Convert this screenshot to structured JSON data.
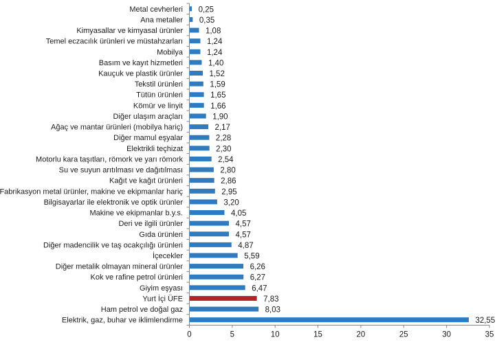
{
  "chart_data": {
    "type": "bar",
    "orientation": "horizontal",
    "title": "",
    "xlabel": "",
    "ylabel": "",
    "xlim": [
      0,
      35
    ],
    "x_ticks": [
      0,
      5,
      10,
      15,
      20,
      25,
      30,
      35
    ],
    "grid": false,
    "legend": "none",
    "default_color": "#2e7bbf",
    "highlight_color": "#b5232a",
    "highlight_category": "Yurt İçi ÜFE",
    "categories": [
      "Metal cevherleri",
      "Ana metaller",
      "Kimyasallar ve kimyasal ürünler",
      "Temel eczacılık ürünleri ve müstahzarları",
      "Mobilya",
      "Basım ve kayıt hizmetleri",
      "Kauçuk ve plastik ürünler",
      "Tekstil ürünleri",
      "Tütün ürünleri",
      "Kömür ve linyit",
      "Diğer ulaşım araçları",
      "Ağaç ve mantar ürünleri (mobilya hariç)",
      "Diğer mamul eşyalar",
      "Elektrikli teçhizat",
      "Motorlu kara taşıtları, römork ve yarı römork",
      "Su ve suyun arıtılması ve dağıtılması",
      "Kağıt ve kağıt ürünleri",
      "Fabrikasyon metal ürünler, makine ve ekipmanlar hariç",
      "Bilgisayarlar ile elektronik ve optik ürünler",
      "Makine ve ekipmanlar b.y.s.",
      "Deri ve ilgili ürünler",
      "Gıda ürünleri",
      "Diğer madencilik ve taş ocakçılığı ürünleri",
      "İçecekler",
      "Diğer metalik olmayan mineral ürünler",
      "Kok ve rafine petrol ürünleri",
      "Giyim eşyası",
      "Yurt İçi ÜFE",
      "Ham petrol ve doğal gaz",
      "Elektrik, gaz, buhar ve iklimlendirme"
    ],
    "values": [
      0.25,
      0.35,
      1.08,
      1.24,
      1.24,
      1.4,
      1.52,
      1.59,
      1.65,
      1.66,
      1.9,
      2.17,
      2.28,
      2.3,
      2.54,
      2.8,
      2.86,
      2.95,
      3.2,
      4.05,
      4.57,
      4.57,
      4.87,
      5.59,
      6.26,
      6.27,
      6.47,
      7.83,
      8.03,
      32.55
    ],
    "value_labels": [
      "0,25",
      "0,35",
      "1,08",
      "1,24",
      "1,24",
      "1,40",
      "1,52",
      "1,59",
      "1,65",
      "1,66",
      "1,90",
      "2,17",
      "2,28",
      "2,30",
      "2,54",
      "2,80",
      "2,86",
      "2,95",
      "3,20",
      "4,05",
      "4,57",
      "4,57",
      "4,87",
      "5,59",
      "6,26",
      "6,27",
      "6,47",
      "7,83",
      "8,03",
      "32,55"
    ]
  }
}
